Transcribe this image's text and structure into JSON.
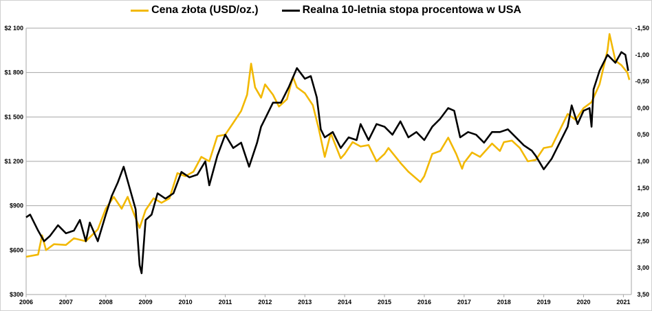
{
  "chart_data": {
    "type": "line",
    "title": "",
    "legend": {
      "placement": "top-center"
    },
    "grid": true,
    "x_axis": {
      "range": [
        2006,
        2021.2
      ],
      "ticks": [
        "2006",
        "2007",
        "2008",
        "2009",
        "2010",
        "2011",
        "2012",
        "2013",
        "2014",
        "2015",
        "2016",
        "2017",
        "2018",
        "2019",
        "2020",
        "2021"
      ]
    },
    "y_left": {
      "range": [
        300,
        2100
      ],
      "ticks": [
        "$300",
        "$600",
        "$900",
        "$1 200",
        "$1 500",
        "$1 800",
        "$2 100"
      ]
    },
    "y_right": {
      "range": [
        -1.5,
        3.5
      ],
      "inverted": true,
      "ticks": [
        "-1,50",
        "-1,00",
        "-0,50",
        "0,00",
        "0,50",
        "1,00",
        "1,50",
        "2,00",
        "2,50",
        "3,00",
        "3,50"
      ]
    },
    "series": [
      {
        "name": "Cena złota (USD/oz.)",
        "axis": "left",
        "color": "#f2b800",
        "points": [
          [
            2006.0,
            555
          ],
          [
            2006.3,
            570
          ],
          [
            2006.4,
            700
          ],
          [
            2006.5,
            600
          ],
          [
            2006.7,
            640
          ],
          [
            2007.0,
            635
          ],
          [
            2007.2,
            680
          ],
          [
            2007.5,
            660
          ],
          [
            2007.8,
            740
          ],
          [
            2008.0,
            880
          ],
          [
            2008.2,
            960
          ],
          [
            2008.4,
            880
          ],
          [
            2008.55,
            960
          ],
          [
            2008.7,
            850
          ],
          [
            2008.85,
            750
          ],
          [
            2009.0,
            870
          ],
          [
            2009.2,
            950
          ],
          [
            2009.4,
            920
          ],
          [
            2009.6,
            950
          ],
          [
            2009.8,
            1120
          ],
          [
            2010.0,
            1100
          ],
          [
            2010.2,
            1130
          ],
          [
            2010.4,
            1230
          ],
          [
            2010.6,
            1200
          ],
          [
            2010.8,
            1370
          ],
          [
            2011.0,
            1380
          ],
          [
            2011.2,
            1460
          ],
          [
            2011.4,
            1540
          ],
          [
            2011.55,
            1650
          ],
          [
            2011.65,
            1860
          ],
          [
            2011.75,
            1700
          ],
          [
            2011.9,
            1630
          ],
          [
            2012.0,
            1720
          ],
          [
            2012.2,
            1650
          ],
          [
            2012.35,
            1570
          ],
          [
            2012.55,
            1620
          ],
          [
            2012.7,
            1770
          ],
          [
            2012.8,
            1700
          ],
          [
            2013.0,
            1660
          ],
          [
            2013.2,
            1580
          ],
          [
            2013.35,
            1420
          ],
          [
            2013.5,
            1230
          ],
          [
            2013.65,
            1390
          ],
          [
            2013.9,
            1220
          ],
          [
            2014.0,
            1250
          ],
          [
            2014.2,
            1330
          ],
          [
            2014.4,
            1300
          ],
          [
            2014.6,
            1310
          ],
          [
            2014.8,
            1200
          ],
          [
            2015.0,
            1250
          ],
          [
            2015.1,
            1290
          ],
          [
            2015.4,
            1190
          ],
          [
            2015.6,
            1130
          ],
          [
            2015.9,
            1060
          ],
          [
            2016.0,
            1100
          ],
          [
            2016.2,
            1250
          ],
          [
            2016.4,
            1270
          ],
          [
            2016.6,
            1360
          ],
          [
            2016.8,
            1250
          ],
          [
            2016.95,
            1150
          ],
          [
            2017.0,
            1190
          ],
          [
            2017.2,
            1260
          ],
          [
            2017.4,
            1230
          ],
          [
            2017.7,
            1320
          ],
          [
            2017.9,
            1270
          ],
          [
            2018.0,
            1330
          ],
          [
            2018.2,
            1340
          ],
          [
            2018.4,
            1290
          ],
          [
            2018.6,
            1200
          ],
          [
            2018.8,
            1210
          ],
          [
            2019.0,
            1290
          ],
          [
            2019.2,
            1300
          ],
          [
            2019.4,
            1410
          ],
          [
            2019.6,
            1520
          ],
          [
            2019.8,
            1480
          ],
          [
            2020.0,
            1560
          ],
          [
            2020.2,
            1600
          ],
          [
            2020.4,
            1720
          ],
          [
            2020.6,
            1950
          ],
          [
            2020.65,
            2060
          ],
          [
            2020.8,
            1880
          ],
          [
            2020.95,
            1850
          ],
          [
            2021.1,
            1800
          ],
          [
            2021.15,
            1750
          ]
        ]
      },
      {
        "name": "Realna 10-letnia stopa procentowa w USA",
        "axis": "right",
        "color": "#000000",
        "points": [
          [
            2006.0,
            2.05
          ],
          [
            2006.1,
            2.0
          ],
          [
            2006.3,
            2.3
          ],
          [
            2006.45,
            2.5
          ],
          [
            2006.6,
            2.4
          ],
          [
            2006.8,
            2.2
          ],
          [
            2007.0,
            2.35
          ],
          [
            2007.2,
            2.3
          ],
          [
            2007.35,
            2.1
          ],
          [
            2007.5,
            2.5
          ],
          [
            2007.6,
            2.15
          ],
          [
            2007.8,
            2.5
          ],
          [
            2008.0,
            2.0
          ],
          [
            2008.15,
            1.65
          ],
          [
            2008.3,
            1.4
          ],
          [
            2008.45,
            1.1
          ],
          [
            2008.6,
            1.5
          ],
          [
            2008.75,
            1.9
          ],
          [
            2008.85,
            2.95
          ],
          [
            2008.9,
            3.1
          ],
          [
            2009.0,
            2.1
          ],
          [
            2009.15,
            2.0
          ],
          [
            2009.3,
            1.6
          ],
          [
            2009.5,
            1.7
          ],
          [
            2009.7,
            1.6
          ],
          [
            2009.9,
            1.2
          ],
          [
            2010.1,
            1.3
          ],
          [
            2010.3,
            1.25
          ],
          [
            2010.5,
            1.0
          ],
          [
            2010.6,
            1.45
          ],
          [
            2010.8,
            0.9
          ],
          [
            2011.0,
            0.5
          ],
          [
            2011.2,
            0.75
          ],
          [
            2011.4,
            0.65
          ],
          [
            2011.6,
            1.1
          ],
          [
            2011.8,
            0.65
          ],
          [
            2011.9,
            0.35
          ],
          [
            2012.0,
            0.2
          ],
          [
            2012.2,
            -0.1
          ],
          [
            2012.4,
            -0.1
          ],
          [
            2012.6,
            -0.4
          ],
          [
            2012.8,
            -0.75
          ],
          [
            2013.0,
            -0.55
          ],
          [
            2013.15,
            -0.6
          ],
          [
            2013.3,
            -0.2
          ],
          [
            2013.4,
            0.4
          ],
          [
            2013.5,
            0.55
          ],
          [
            2013.7,
            0.45
          ],
          [
            2013.9,
            0.75
          ],
          [
            2014.1,
            0.55
          ],
          [
            2014.3,
            0.6
          ],
          [
            2014.4,
            0.3
          ],
          [
            2014.6,
            0.6
          ],
          [
            2014.8,
            0.3
          ],
          [
            2015.0,
            0.35
          ],
          [
            2015.2,
            0.5
          ],
          [
            2015.4,
            0.25
          ],
          [
            2015.6,
            0.55
          ],
          [
            2015.8,
            0.45
          ],
          [
            2016.0,
            0.6
          ],
          [
            2016.2,
            0.35
          ],
          [
            2016.4,
            0.2
          ],
          [
            2016.6,
            0.0
          ],
          [
            2016.75,
            0.05
          ],
          [
            2016.9,
            0.55
          ],
          [
            2017.1,
            0.45
          ],
          [
            2017.3,
            0.5
          ],
          [
            2017.5,
            0.65
          ],
          [
            2017.7,
            0.45
          ],
          [
            2017.9,
            0.45
          ],
          [
            2018.1,
            0.4
          ],
          [
            2018.3,
            0.55
          ],
          [
            2018.5,
            0.7
          ],
          [
            2018.7,
            0.8
          ],
          [
            2018.8,
            0.9
          ],
          [
            2019.0,
            1.15
          ],
          [
            2019.2,
            0.95
          ],
          [
            2019.4,
            0.65
          ],
          [
            2019.6,
            0.35
          ],
          [
            2019.7,
            -0.05
          ],
          [
            2019.85,
            0.3
          ],
          [
            2020.0,
            0.05
          ],
          [
            2020.15,
            0.0
          ],
          [
            2020.2,
            0.35
          ],
          [
            2020.25,
            -0.35
          ],
          [
            2020.4,
            -0.7
          ],
          [
            2020.6,
            -1.0
          ],
          [
            2020.8,
            -0.85
          ],
          [
            2020.95,
            -1.05
          ],
          [
            2021.05,
            -1.0
          ],
          [
            2021.12,
            -0.7
          ]
        ]
      }
    ]
  }
}
